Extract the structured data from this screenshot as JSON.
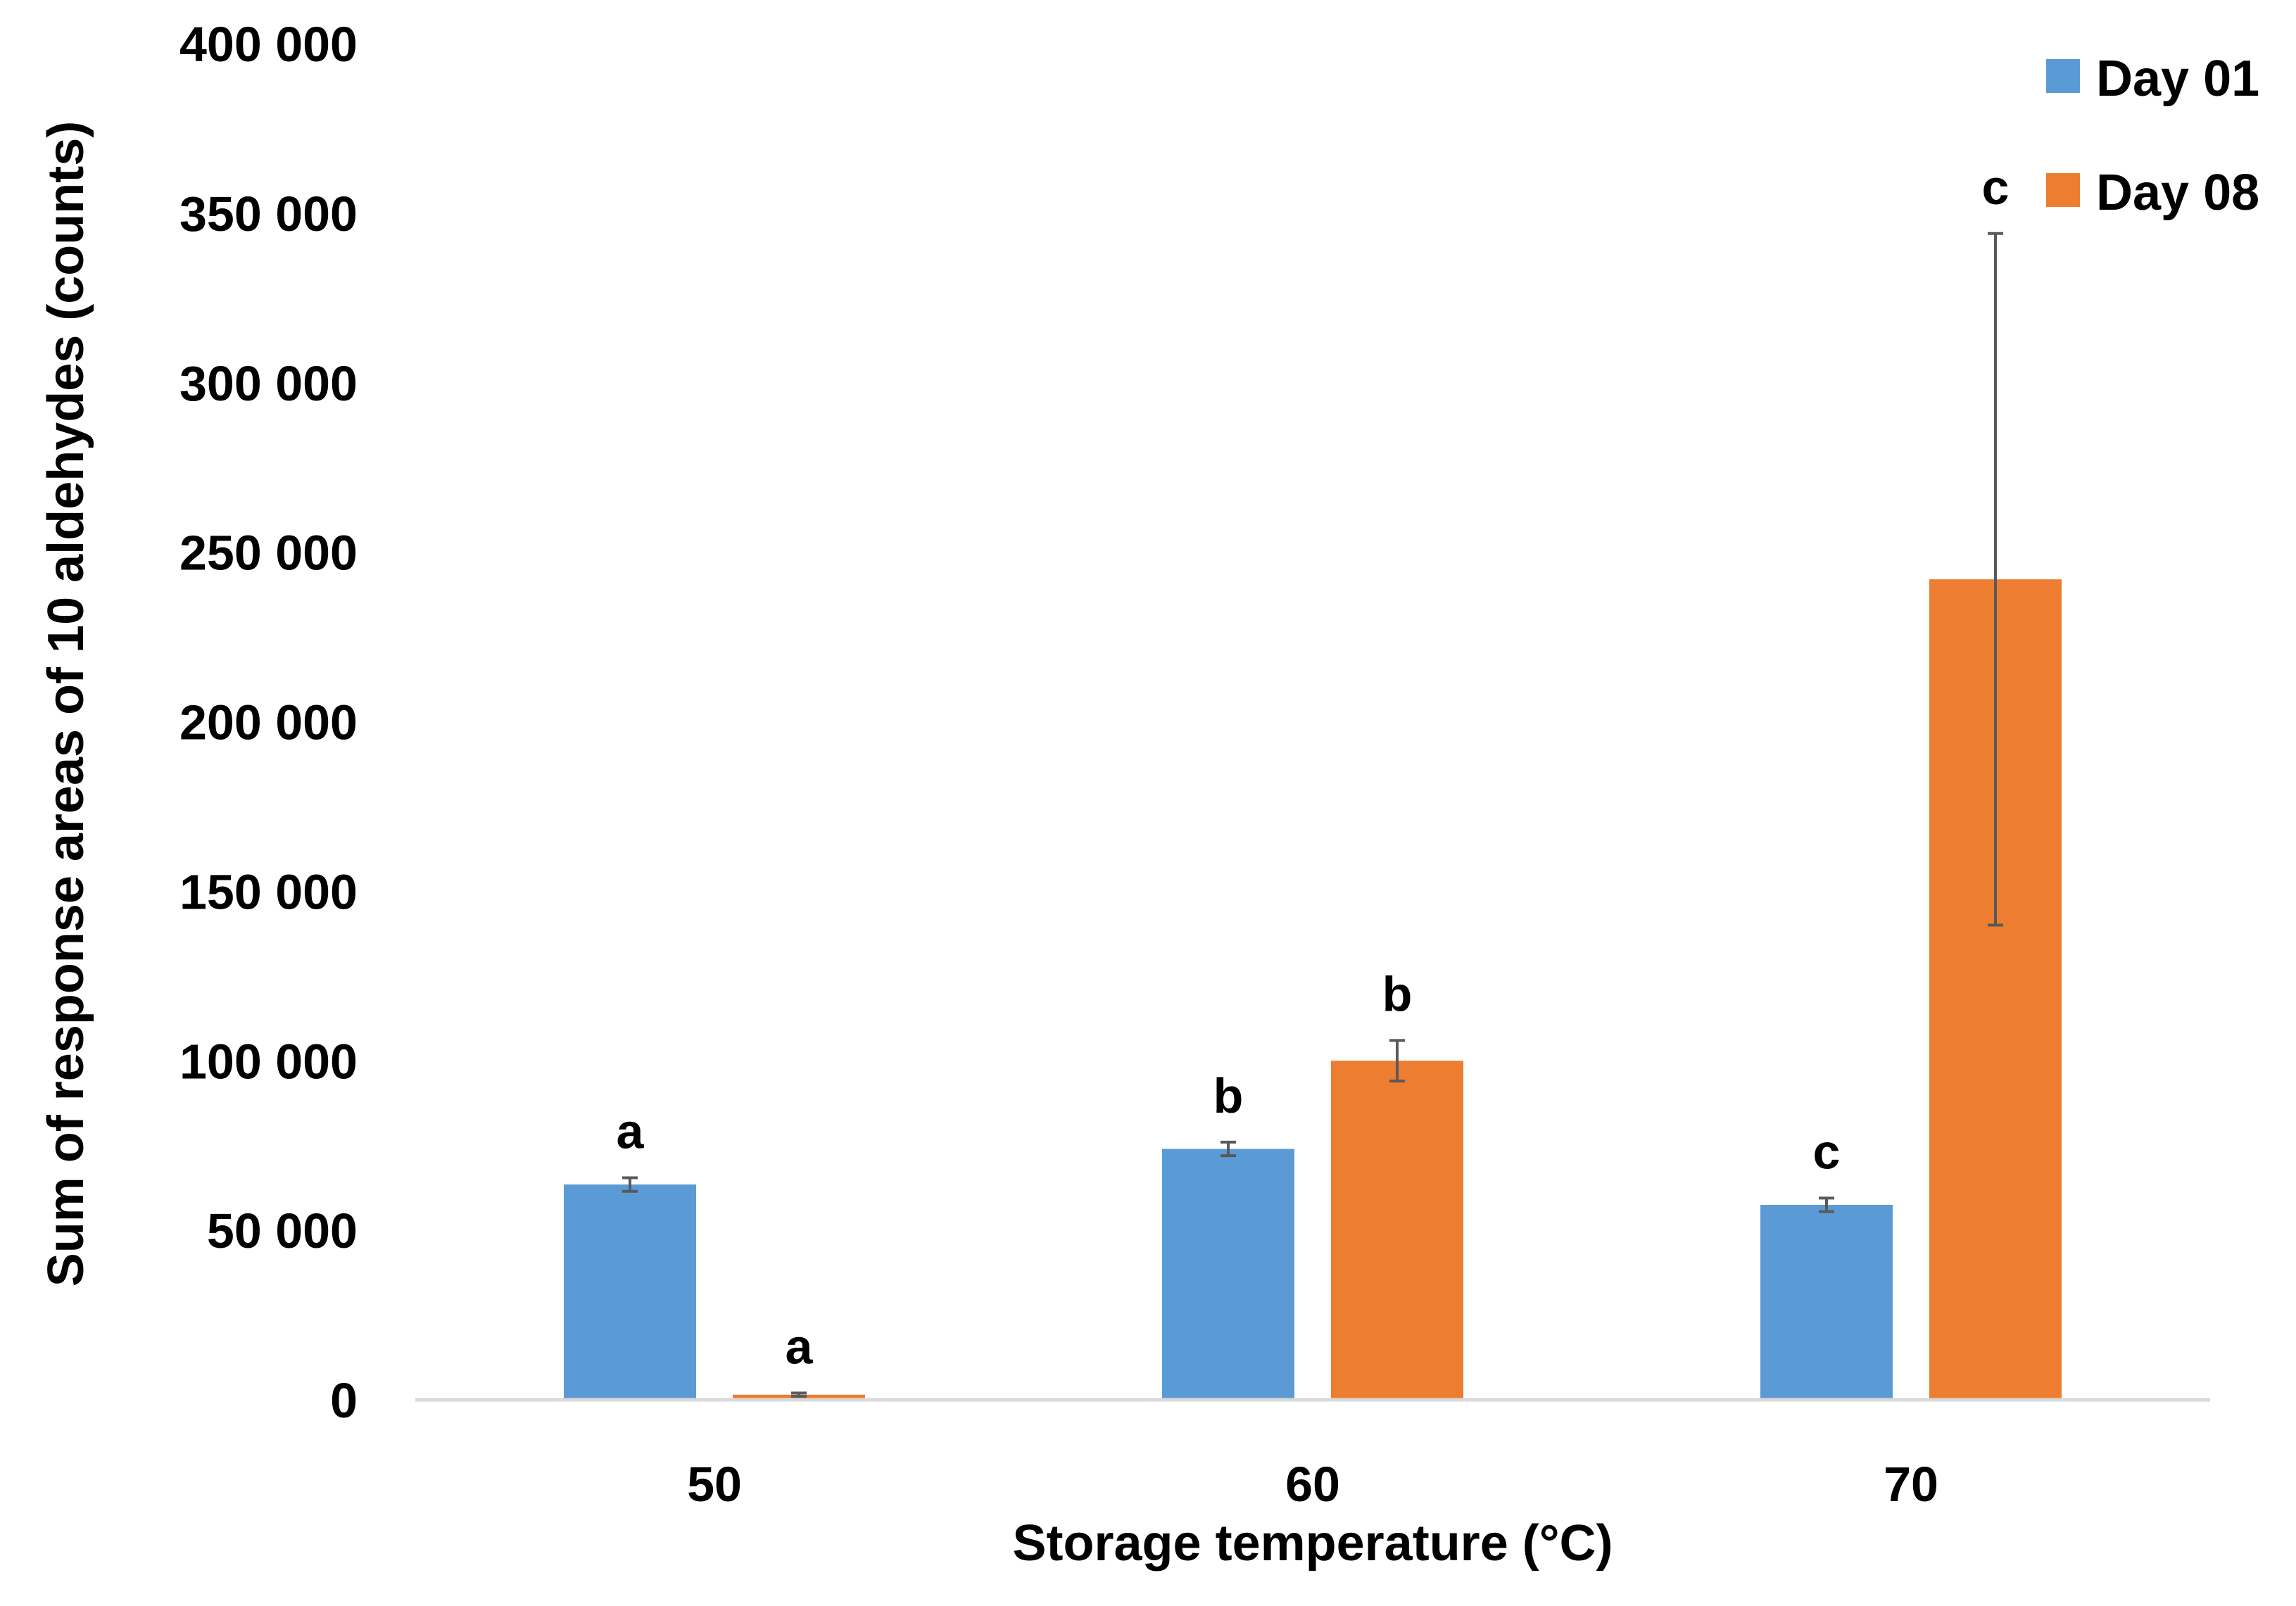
{
  "chart_data": {
    "type": "bar",
    "title": "",
    "xlabel": "Storage temperature (°C)",
    "ylabel": "Sum of response areas of 10 aldehydes (counts)",
    "ylim": [
      0,
      400000
    ],
    "yticks": [
      0,
      50000,
      100000,
      150000,
      200000,
      250000,
      300000,
      350000,
      400000
    ],
    "ytick_labels": [
      "0",
      "50 000",
      "100 000",
      "150 000",
      "200 000",
      "250 000",
      "300 000",
      "350 000",
      "400 000"
    ],
    "categories": [
      "50",
      "60",
      "70"
    ],
    "legend_position": "top-right",
    "grid": false,
    "series": [
      {
        "name": "Day 01",
        "color": "#5B9BD5",
        "values": [
          63500,
          74000,
          57500
        ],
        "errors": [
          2000,
          2000,
          2000
        ],
        "labels": [
          "a",
          "b",
          "c"
        ]
      },
      {
        "name": "Day 08",
        "color": "#ED7D31",
        "values": [
          1500,
          100000,
          242000
        ],
        "errors": [
          500,
          6000,
          102000
        ],
        "labels": [
          "a",
          "b",
          "c"
        ]
      }
    ]
  }
}
